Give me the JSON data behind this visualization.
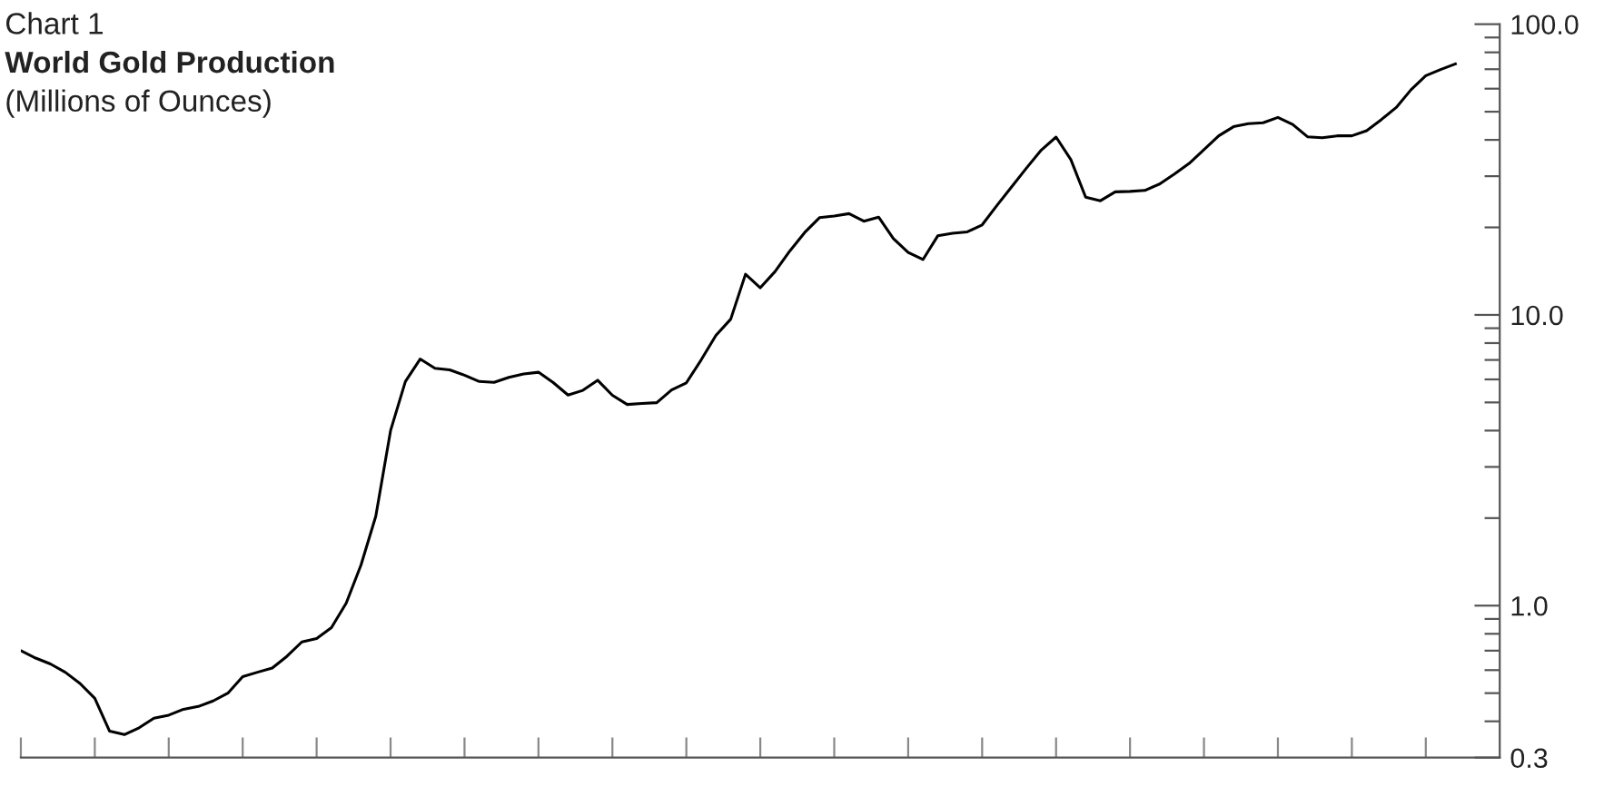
{
  "chart_data": {
    "type": "line",
    "title": "World Gold Production",
    "subtitle": "(Millions of Ounces)",
    "annotations": [
      "Chart 1"
    ],
    "categories": [
      null,
      null,
      null,
      null,
      null,
      null,
      null,
      null,
      null,
      null,
      null,
      null,
      null,
      null,
      null,
      null,
      null,
      null,
      null,
      null,
      null,
      null,
      null,
      null,
      null,
      null,
      null,
      null,
      null,
      null,
      null,
      null,
      null,
      null,
      null,
      null,
      null,
      null,
      null,
      null,
      null,
      null,
      null,
      null,
      null,
      null,
      null,
      null,
      null,
      null,
      null,
      null,
      null,
      null,
      null,
      null,
      null,
      null,
      null,
      null,
      null,
      null,
      null,
      null,
      null,
      null,
      null,
      null,
      null,
      null,
      null,
      null,
      null,
      null,
      null,
      null,
      null,
      null,
      null,
      null,
      null,
      null,
      null,
      null,
      null,
      null,
      null,
      null,
      null,
      null,
      null,
      null,
      null,
      null,
      null,
      null,
      null,
      null
    ],
    "series": [
      {
        "color": "#000000",
        "values": [
          0.7,
          0.66,
          0.63,
          0.59,
          0.54,
          0.48,
          0.37,
          0.36,
          0.38,
          0.41,
          0.42,
          0.44,
          0.45,
          0.47,
          0.5,
          0.57,
          0.59,
          0.61,
          0.67,
          0.75,
          0.77,
          0.84,
          1.02,
          1.38,
          2.03,
          4.0,
          5.9,
          7.05,
          6.55,
          6.47,
          6.2,
          5.9,
          5.86,
          6.1,
          6.26,
          6.35,
          5.85,
          5.3,
          5.5,
          5.96,
          5.29,
          4.92,
          4.96,
          4.99,
          5.52,
          5.84,
          7.0,
          8.5,
          9.67,
          13.8,
          12.4,
          14.1,
          16.6,
          19.2,
          21.6,
          21.9,
          22.3,
          21.0,
          21.7,
          18.3,
          16.4,
          15.5,
          18.7,
          19.1,
          19.3,
          20.4,
          23.8,
          27.6,
          32.0,
          36.9,
          40.9,
          34.2,
          25.4,
          24.7,
          26.5,
          26.6,
          26.8,
          28.2,
          30.5,
          33.2,
          37.0,
          41.3,
          44.4,
          45.5,
          45.8,
          47.8,
          45.2,
          41.0,
          40.7,
          41.3,
          41.3,
          43.0,
          47.0,
          51.7,
          59.5,
          66.5,
          69.8,
          73.0
        ]
      }
    ],
    "log": "y",
    "ylim": [
      0.3,
      100
    ],
    "yticks": [
      {
        "value": 0.3,
        "label": "0.3"
      },
      {
        "value": 1,
        "label": "1.0"
      },
      {
        "value": 10,
        "label": "10.0"
      },
      {
        "value": 100,
        "label": "100.0"
      }
    ],
    "grid": false,
    "line_style": "solid",
    "marker": "none"
  }
}
